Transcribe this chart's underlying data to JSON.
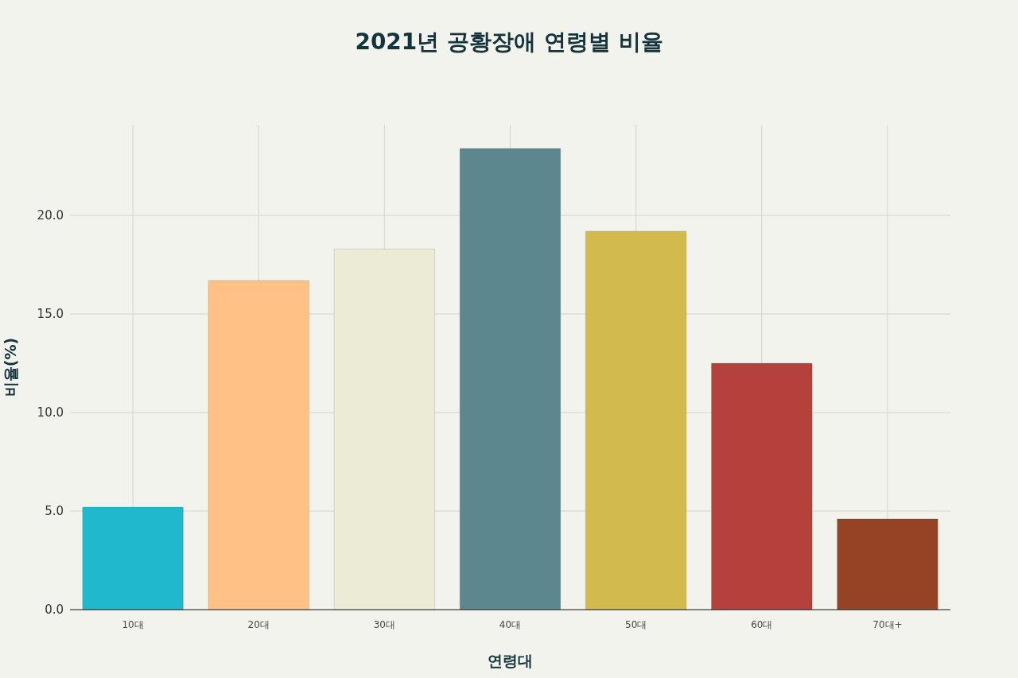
{
  "chart_data": {
    "type": "bar",
    "title": "2021년 공황장애 연령별 비율",
    "xlabel": "연령대",
    "ylabel": "비율(%)",
    "categories": [
      "10대",
      "20대",
      "30대",
      "40대",
      "50대",
      "60대",
      "70대+"
    ],
    "values": [
      5.2,
      16.7,
      18.3,
      23.4,
      19.2,
      12.5,
      4.6
    ],
    "colors": [
      "#1fb8cd",
      "#ffc185",
      "#eceBd5",
      "#5d878f",
      "#d2ba4c",
      "#b4413c",
      "#964325"
    ],
    "ylim": [
      0,
      24.6
    ],
    "yticks": [
      {
        "value": 0,
        "label": "0.0"
      },
      {
        "value": 5,
        "label": "5.0"
      },
      {
        "value": 10,
        "label": "10.0"
      },
      {
        "value": 15,
        "label": "15.0"
      },
      {
        "value": 20,
        "label": "20.0"
      }
    ],
    "grid": true
  }
}
